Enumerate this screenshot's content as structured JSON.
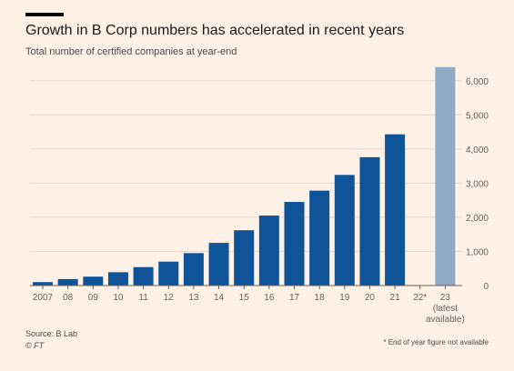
{
  "header": {
    "title": "Growth in B Corp numbers has accelerated in recent years",
    "subtitle": "Total number of certified companies at year-end"
  },
  "footer": {
    "source": "Source: B Lab",
    "credit": "© FT",
    "note": "* End of year figure not available"
  },
  "colors": {
    "background": "#fff1e5",
    "bar": "#0f5499",
    "bar_latest": "#8eaac5",
    "grid": "#e5d7cb",
    "axis_text": "#66605c"
  },
  "chart_data": {
    "type": "bar",
    "title": "Growth in B Corp numbers has accelerated in recent years",
    "subtitle": "Total number of certified companies at year-end",
    "categories": [
      "2007",
      "08",
      "09",
      "10",
      "11",
      "12",
      "13",
      "14",
      "15",
      "16",
      "17",
      "18",
      "19",
      "20",
      "21",
      "22*",
      "23"
    ],
    "category_extra_labels": {
      "16": [
        "(latest",
        "available)"
      ]
    },
    "values": [
      100,
      190,
      260,
      390,
      540,
      700,
      950,
      1250,
      1620,
      2050,
      2450,
      2780,
      3240,
      3760,
      4430,
      null,
      6400
    ],
    "highlight_index": 16,
    "xlabel": "",
    "ylabel": "",
    "ylim": [
      0,
      6500
    ],
    "yticks": [
      0,
      1000,
      2000,
      3000,
      4000,
      5000,
      6000
    ],
    "ytick_labels": [
      "0",
      "1,000",
      "2,000",
      "3,000",
      "4,000",
      "5,000",
      "6,000"
    ],
    "y_axis_side": "right",
    "grid": true
  }
}
